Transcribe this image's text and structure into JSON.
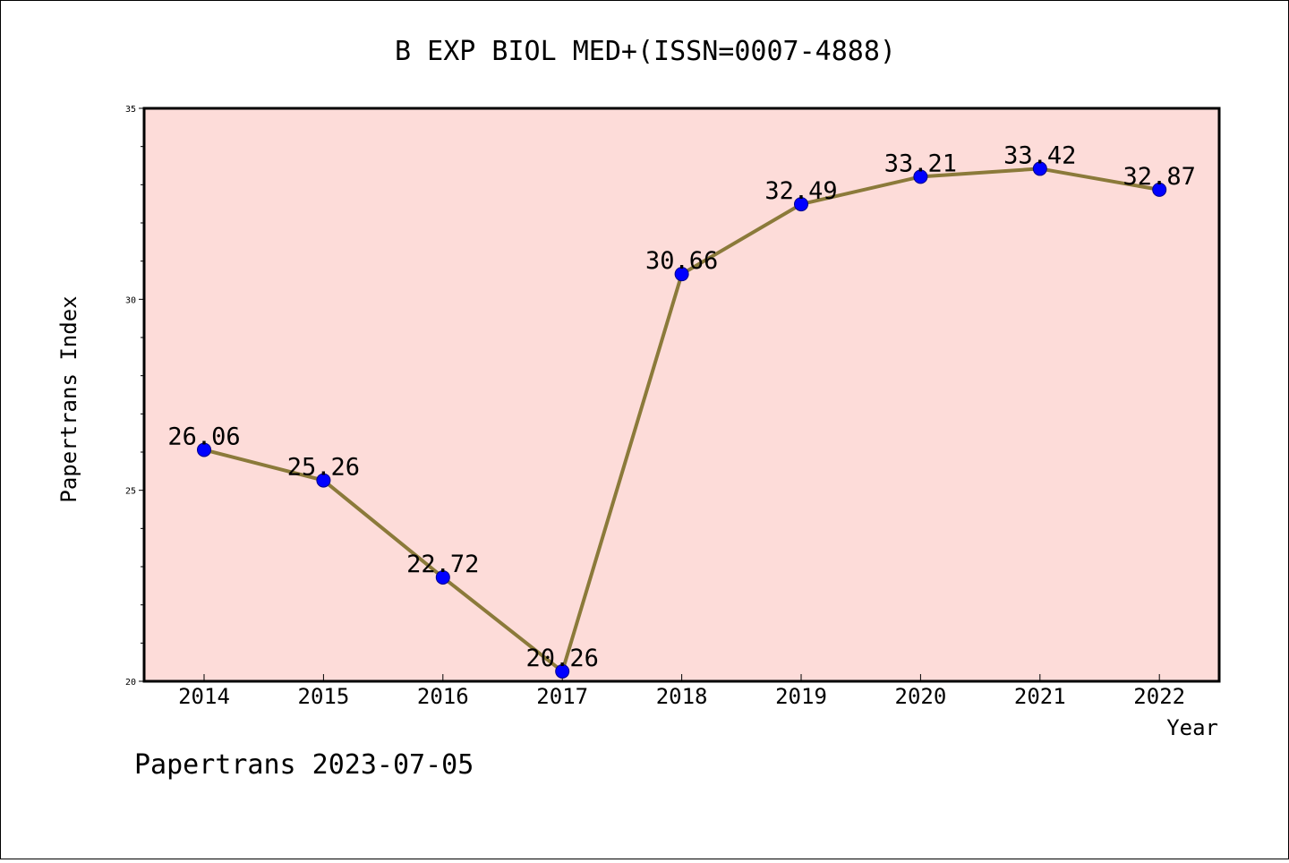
{
  "chart_data": {
    "type": "line",
    "title": "B EXP BIOL MED+(ISSN=0007-4888)",
    "xlabel": "Year",
    "ylabel": "Papertrans Index",
    "x": [
      "2014",
      "2015",
      "2016",
      "2017",
      "2018",
      "2019",
      "2020",
      "2021",
      "2022"
    ],
    "y_ticks": [
      "20",
      "25",
      "30",
      "35"
    ],
    "ylim": [
      20,
      35
    ],
    "series": [
      {
        "values": [
          26.06,
          25.26,
          22.72,
          20.26,
          30.66,
          32.49,
          33.21,
          33.42,
          32.87
        ],
        "labels": [
          "26.06",
          "25.26",
          "22.72",
          "20.26",
          "30.66",
          "32.49",
          "33.21",
          "33.42",
          "32.87"
        ],
        "line_color": "#8b7a3a",
        "marker_color": "#0000ff"
      }
    ],
    "plot_background": "#fddcd9",
    "grid": false,
    "legend": "none"
  },
  "footer": {
    "text": "Papertrans 2023-07-05"
  }
}
